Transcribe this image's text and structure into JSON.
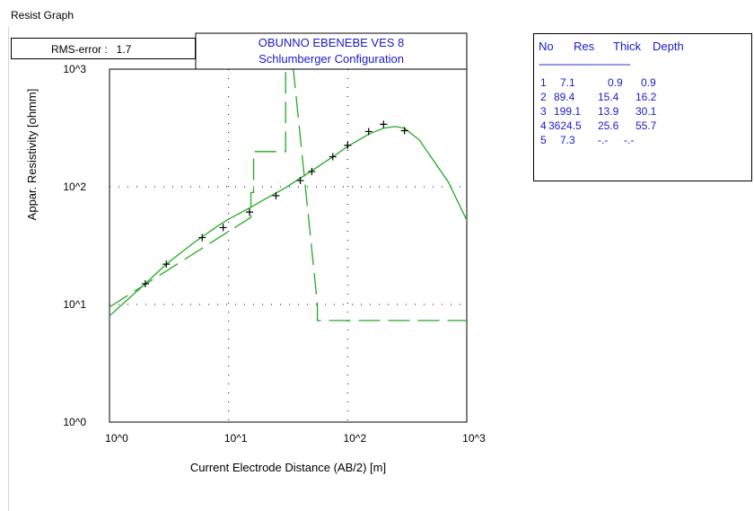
{
  "window": {
    "title": "Resist Graph"
  },
  "rms": {
    "label": "RMS-error :",
    "value": "1.7"
  },
  "layers": {
    "headers": [
      "No",
      "Res",
      "Thick",
      "Depth"
    ],
    "separator": "----------------------------------",
    "rows": [
      {
        "no": "1",
        "res": "7.1",
        "thick": "0.9",
        "depth": "0.9"
      },
      {
        "no": "2",
        "res": "89.4",
        "thick": "15.4",
        "depth": "16.2"
      },
      {
        "no": "3",
        "res": "199.1",
        "thick": "13.9",
        "depth": "30.1"
      },
      {
        "no": "4",
        "res": "3624.5",
        "thick": "25.6",
        "depth": "55.7"
      },
      {
        "no": "5",
        "res": "7.3",
        "thick": "-.-",
        "depth": "-.-"
      }
    ]
  },
  "chart_data": {
    "type": "line",
    "title": "OBUNNO EBENEBE VES 8",
    "subtitle": "Schlumberger Configuration",
    "xlabel": "Current Electrode Distance (AB/2) [m]",
    "ylabel": "Appar. Resistivity [ohmm]",
    "xscale": "log",
    "yscale": "log",
    "xlim": [
      1,
      1000
    ],
    "ylim": [
      1,
      1000
    ],
    "x_ticks": [
      "10^0",
      "10^1",
      "10^2",
      "10^3"
    ],
    "y_ticks": [
      "10^0",
      "10^1",
      "10^2",
      "10^3"
    ],
    "grid": "dotted",
    "color": "#22aa22",
    "observed": {
      "marker": "+",
      "x": [
        2,
        3,
        6,
        9,
        15,
        25,
        40,
        50,
        75,
        100,
        150,
        200,
        300
      ],
      "y": [
        15,
        22,
        37,
        45,
        61,
        84,
        113,
        135,
        180,
        225,
        295,
        340,
        300
      ]
    },
    "calculated_curve": {
      "x": [
        1,
        2,
        3,
        5,
        8,
        10,
        15,
        20,
        30,
        50,
        75,
        100,
        150,
        200,
        250,
        300,
        400,
        500,
        700,
        1000
      ],
      "y": [
        8,
        15,
        22,
        33,
        46,
        53,
        66,
        78,
        98,
        137,
        180,
        220,
        280,
        315,
        325,
        315,
        250,
        180,
        110,
        52
      ]
    },
    "model_curve": {
      "x": [
        1,
        15.4,
        15.4,
        16.2,
        16.2,
        30.1,
        30.1,
        35,
        55.7,
        55.7,
        1000
      ],
      "y": [
        9.5,
        55,
        89.4,
        89.4,
        199.1,
        199.1,
        1000,
        1000,
        10,
        7.3,
        7.3
      ]
    }
  }
}
